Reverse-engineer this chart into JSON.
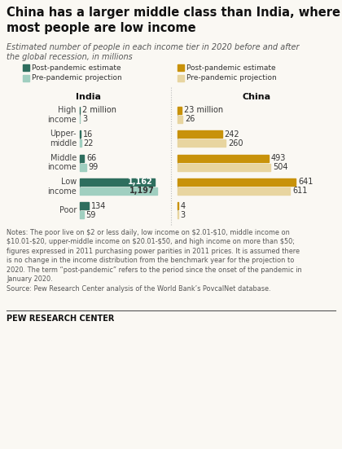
{
  "title": "China has a larger middle class than India, where\nmost people are low income",
  "subtitle": "Estimated number of people in each income tier in 2020 before and after\nthe global recession, in millions",
  "categories": [
    "High\nincome",
    "Upper-\nmiddle",
    "Middle\nincome",
    "Low\nincome",
    "Poor"
  ],
  "india_post": [
    2,
    16,
    66,
    1162,
    134
  ],
  "india_pre": [
    3,
    22,
    99,
    1197,
    59
  ],
  "china_post": [
    23,
    242,
    493,
    641,
    4
  ],
  "china_pre": [
    26,
    260,
    504,
    611,
    3
  ],
  "india_post_labels": [
    "2 million",
    "16",
    "66",
    "1,162",
    "134"
  ],
  "india_pre_labels": [
    "3",
    "22",
    "99",
    "1,197",
    "59"
  ],
  "china_post_labels": [
    "23 million",
    "242",
    "493",
    "641",
    "4"
  ],
  "china_pre_labels": [
    "26",
    "260",
    "504",
    "611",
    "3"
  ],
  "india_post_color": "#2e6e5e",
  "india_pre_color": "#a0cfc0",
  "china_post_color": "#c8920a",
  "china_pre_color": "#e8d5a0",
  "notes_text": "Notes: The poor live on $2 or less daily, low income on $2.01-$10, middle income on\n$10.01-$20, upper-middle income on $20.01-$50, and high income on more than $50;\nfigures expressed in 2011 purchasing power parities in 2011 prices. It is assumed there\nis no change in the income distribution from the benchmark year for the projection to\n2020. The term “post-pandemic” refers to the period since the onset of the pandemic in\nJanuary 2020.\nSource: Pew Research Center analysis of the World Bank’s PovcalNet database.",
  "footer": "PEW RESEARCH CENTER",
  "background_color": "#faf8f3"
}
